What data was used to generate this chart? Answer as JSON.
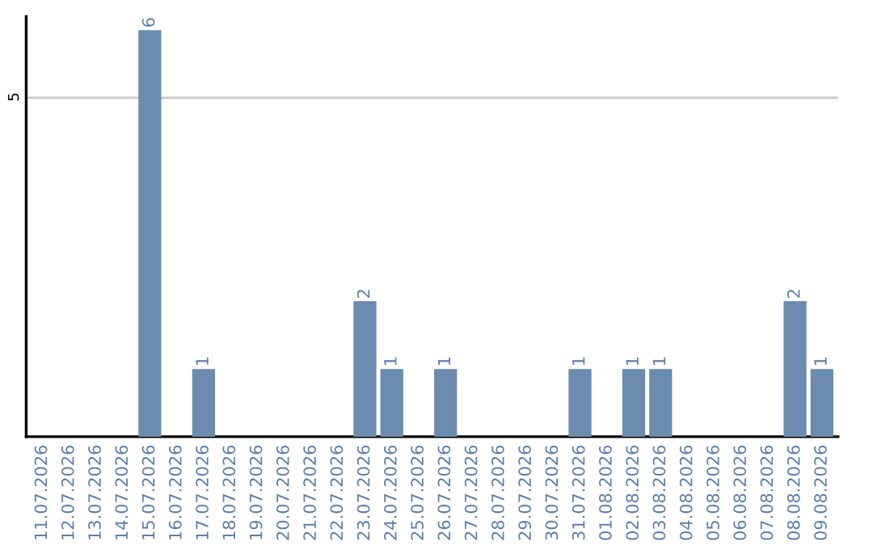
{
  "chart_data": {
    "type": "bar",
    "categories": [
      "11.07.2026",
      "12.07.2026",
      "13.07.2026",
      "14.07.2026",
      "15.07.2026",
      "16.07.2026",
      "17.07.2026",
      "18.07.2026",
      "19.07.2026",
      "20.07.2026",
      "21.07.2026",
      "22.07.2026",
      "23.07.2026",
      "24.07.2026",
      "25.07.2026",
      "26.07.2026",
      "27.07.2026",
      "28.07.2026",
      "29.07.2026",
      "30.07.2026",
      "31.07.2026",
      "01.08.2026",
      "02.08.2026",
      "03.08.2026",
      "04.08.2026",
      "05.08.2026",
      "06.08.2026",
      "07.08.2026",
      "08.08.2026",
      "09.08.2026"
    ],
    "values": [
      0,
      0,
      0,
      0,
      6,
      0,
      1,
      0,
      0,
      0,
      0,
      0,
      2,
      1,
      0,
      1,
      0,
      0,
      0,
      0,
      1,
      0,
      1,
      1,
      0,
      0,
      0,
      0,
      2,
      1
    ],
    "value_labels": [
      null,
      null,
      null,
      null,
      "6",
      null,
      "1",
      null,
      null,
      null,
      null,
      null,
      "2",
      "1",
      null,
      "1",
      null,
      null,
      null,
      null,
      "1",
      null,
      "1",
      "1",
      null,
      null,
      null,
      null,
      "2",
      "1"
    ],
    "color": "#6b8cae",
    "ylim": [
      0,
      6.2
    ],
    "yticks": [
      5
    ],
    "grid": "y"
  }
}
